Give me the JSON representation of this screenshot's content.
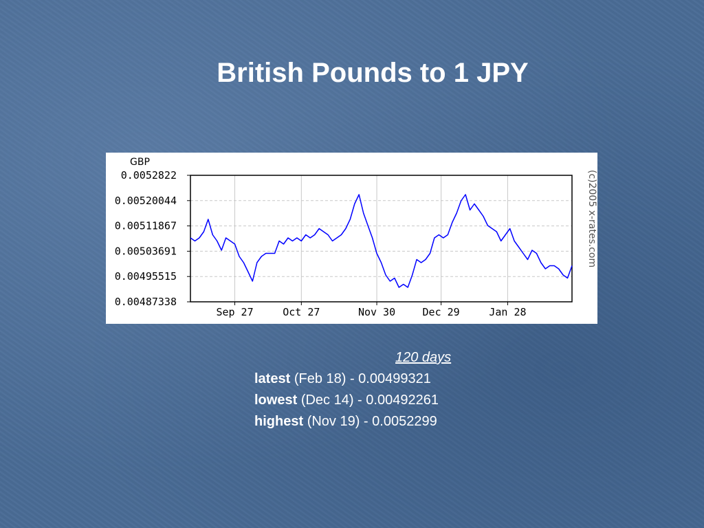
{
  "title": "British Pounds to 1 JPY",
  "chart_data": {
    "type": "line",
    "unit_label": "GBP",
    "watermark": "(c)2005 x-rates.com",
    "y_ticks": [
      "0.0052822",
      "0.00520044",
      "0.00511867",
      "0.00503691",
      "0.00495515",
      "0.00487338"
    ],
    "y_tick_values": [
      0.0052822,
      0.00520044,
      0.00511867,
      0.00503691,
      0.00495515,
      0.00487338
    ],
    "ylim": [
      0.00487338,
      0.0052822
    ],
    "x_ticks": [
      "Sep 27",
      "Oct 27",
      "Nov 30",
      "Dec 29",
      "Jan 28"
    ],
    "x_tick_days": [
      20,
      50,
      84,
      113,
      143
    ],
    "xlim": [
      0,
      172
    ],
    "grid": true,
    "line_color": "#0000ff",
    "series": [
      {
        "x": [
          0,
          2,
          4,
          6,
          8,
          10,
          12,
          14,
          16,
          18,
          20,
          22,
          24,
          26,
          28,
          30,
          32,
          34,
          36,
          38,
          40,
          42,
          44,
          46,
          48,
          50,
          52,
          54,
          56,
          58,
          60,
          62,
          64,
          66,
          68,
          70,
          72,
          74,
          76,
          78,
          80,
          82,
          84,
          86,
          88,
          90,
          92,
          94,
          96,
          98,
          100,
          102,
          104,
          106,
          108,
          110,
          112,
          114,
          116,
          118,
          120,
          122,
          124,
          126,
          128,
          130,
          132,
          134,
          136,
          138,
          140,
          142,
          144,
          146,
          148,
          150,
          152,
          154,
          156,
          158,
          160,
          162,
          164,
          166,
          168,
          170,
          172
        ],
        "values": [
          0.00508,
          0.00507,
          0.00508,
          0.0051,
          0.00514,
          0.00509,
          0.00507,
          0.00504,
          0.00508,
          0.00507,
          0.00506,
          0.00502,
          0.005,
          0.00497,
          0.00494,
          0.005,
          0.00502,
          0.00503,
          0.00503,
          0.00503,
          0.00507,
          0.00506,
          0.00508,
          0.00507,
          0.00508,
          0.00507,
          0.00509,
          0.00508,
          0.00509,
          0.00511,
          0.0051,
          0.00509,
          0.00507,
          0.00508,
          0.00509,
          0.00511,
          0.00514,
          0.00519,
          0.00522,
          0.00516,
          0.00512,
          0.00508,
          0.00503,
          0.005,
          0.00496,
          0.00494,
          0.00495,
          0.00492,
          0.00493,
          0.00492,
          0.00496,
          0.00501,
          0.005,
          0.00501,
          0.00503,
          0.00508,
          0.00509,
          0.00508,
          0.00509,
          0.00513,
          0.00516,
          0.0052,
          0.00522,
          0.00517,
          0.00519,
          0.00517,
          0.00515,
          0.00512,
          0.00511,
          0.0051,
          0.00507,
          0.00509,
          0.00511,
          0.00507,
          0.00505,
          0.00503,
          0.00501,
          0.00504,
          0.00503,
          0.005,
          0.00498,
          0.00499,
          0.00499,
          0.00498,
          0.00496,
          0.00495,
          0.00499
        ]
      }
    ]
  },
  "stats": {
    "period": "120 days",
    "latest_label": "latest",
    "latest_value": "(Feb 18) - 0.00499321",
    "lowest_label": "lowest",
    "lowest_value": "(Dec 14) - 0.00492261",
    "highest_label": "highest",
    "highest_value": "(Nov 19) - 0.0052299"
  }
}
